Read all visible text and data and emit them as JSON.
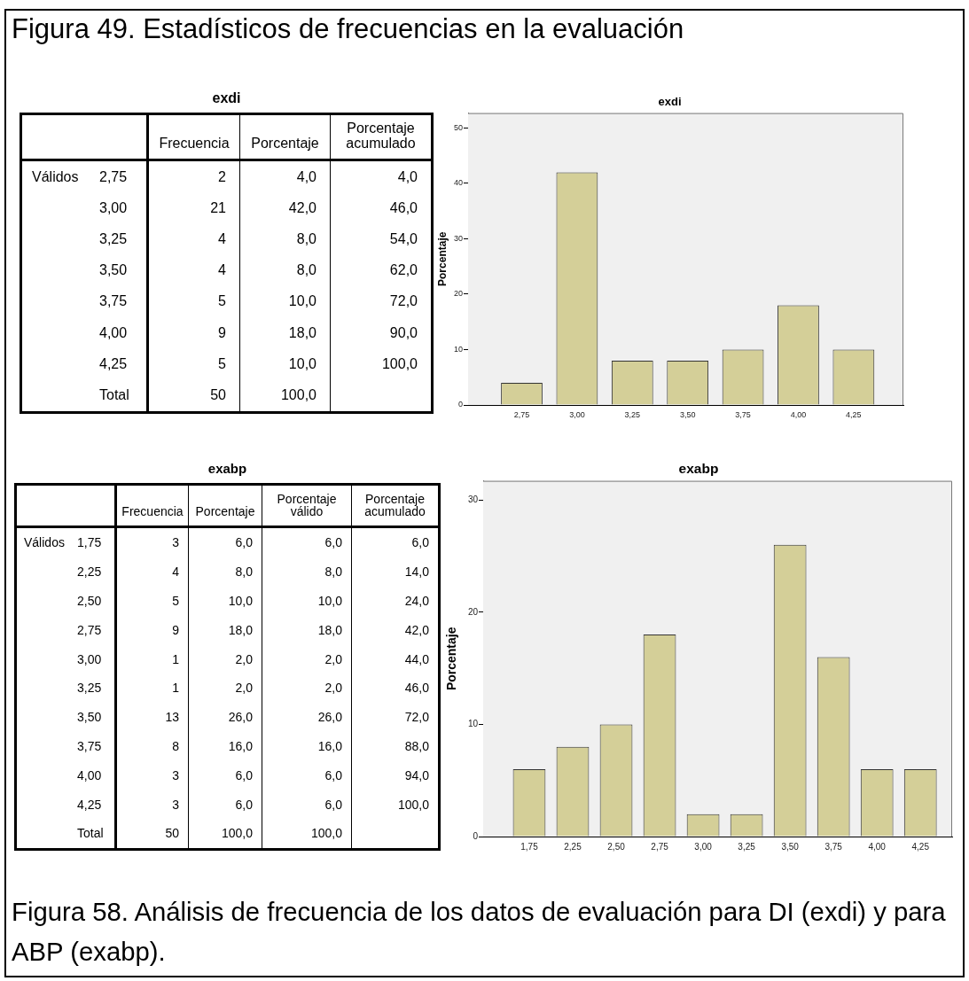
{
  "chart_data": [
    {
      "type": "other",
      "title": "Figura 49. Estadísticos de frecuencias en la evaluación"
    },
    {
      "type": "heatmap",
      "title": "exdi",
      "ylabel": "Válidos",
      "categories": [
        "Frecuencia",
        "Porcentaje",
        "Porcentaje acumulado"
      ],
      "y_categories": [
        "2,75",
        "3,00",
        "3,25",
        "3,50",
        "3,75",
        "4,00",
        "4,25",
        "Total"
      ],
      "cells": [
        [
          2,
          4,
          4
        ],
        [
          21,
          42,
          46
        ],
        [
          4,
          8,
          54
        ],
        [
          4,
          8,
          62
        ],
        [
          5,
          10,
          72
        ],
        [
          9,
          18,
          90
        ],
        [
          5,
          10,
          100
        ],
        [
          50,
          100,
          null
        ]
      ],
      "cell_labels": [
        [
          "2",
          "4,0",
          "4,0"
        ],
        [
          "21",
          "42,0",
          "46,0"
        ],
        [
          "4",
          "8,0",
          "54,0"
        ],
        [
          "4",
          "8,0",
          "62,0"
        ],
        [
          "5",
          "10,0",
          "72,0"
        ],
        [
          "9",
          "18,0",
          "90,0"
        ],
        [
          "5",
          "10,0",
          "100,0"
        ],
        [
          "50",
          "100,0",
          null
        ]
      ]
    },
    {
      "type": "bar",
      "title": "exdi",
      "ylabel": "Porcentaje",
      "categories": [
        "2,75",
        "3,00",
        "3,25",
        "3,50",
        "3,75",
        "4,00",
        "4,25"
      ],
      "values": [
        4,
        42,
        8,
        8,
        10,
        18,
        10
      ],
      "color": "#d4cf98",
      "ylim": [
        0,
        52.7
      ],
      "yticks": [
        0,
        10,
        20,
        30,
        40,
        50
      ]
    },
    {
      "type": "heatmap",
      "title": "exabp",
      "ylabel": "Válidos",
      "categories": [
        "Frecuencia",
        "Porcentaje",
        "Porcentaje válido",
        "Porcentaje acumulado"
      ],
      "y_categories": [
        "1,75",
        "2,25",
        "2,50",
        "2,75",
        "3,00",
        "3,25",
        "3,50",
        "3,75",
        "4,00",
        "4,25",
        "Total"
      ],
      "cells": [
        [
          3,
          6,
          6,
          6
        ],
        [
          4,
          8,
          8,
          14
        ],
        [
          5,
          10,
          10,
          24
        ],
        [
          9,
          18,
          18,
          42
        ],
        [
          1,
          2,
          2,
          44
        ],
        [
          1,
          2,
          2,
          46
        ],
        [
          13,
          26,
          26,
          72
        ],
        [
          8,
          16,
          16,
          88
        ],
        [
          3,
          6,
          6,
          94
        ],
        [
          3,
          6,
          6,
          100
        ],
        [
          50,
          100,
          100,
          null
        ]
      ],
      "cell_labels": [
        [
          "3",
          "6,0",
          "6,0",
          "6,0"
        ],
        [
          "4",
          "8,0",
          "8,0",
          "14,0"
        ],
        [
          "5",
          "10,0",
          "10,0",
          "24,0"
        ],
        [
          "9",
          "18,0",
          "18,0",
          "42,0"
        ],
        [
          "1",
          "2,0",
          "2,0",
          "44,0"
        ],
        [
          "1",
          "2,0",
          "2,0",
          "46,0"
        ],
        [
          "13",
          "26,0",
          "26,0",
          "72,0"
        ],
        [
          "8",
          "16,0",
          "16,0",
          "88,0"
        ],
        [
          "3",
          "6,0",
          "6,0",
          "94,0"
        ],
        [
          "3",
          "6,0",
          "6,0",
          "100,0"
        ],
        [
          "50",
          "100,0",
          "100,0",
          null
        ]
      ]
    },
    {
      "type": "bar",
      "title": "exabp",
      "ylabel": "Porcentaje",
      "categories": [
        "1,75",
        "2,25",
        "2,50",
        "2,75",
        "3,00",
        "3,25",
        "3,50",
        "3,75",
        "4,00",
        "4,25"
      ],
      "values": [
        6,
        8,
        10,
        18,
        2,
        2,
        26,
        16,
        6,
        6
      ],
      "color": "#d4cf98",
      "ylim": [
        0,
        31.7
      ],
      "yticks": [
        0,
        10,
        20,
        30
      ]
    },
    {
      "type": "other",
      "annotations": [
        "Figura 58. Análisis de frecuencia de los datos de evaluación para DI (exdi) y para ABP (exabp)."
      ]
    }
  ]
}
